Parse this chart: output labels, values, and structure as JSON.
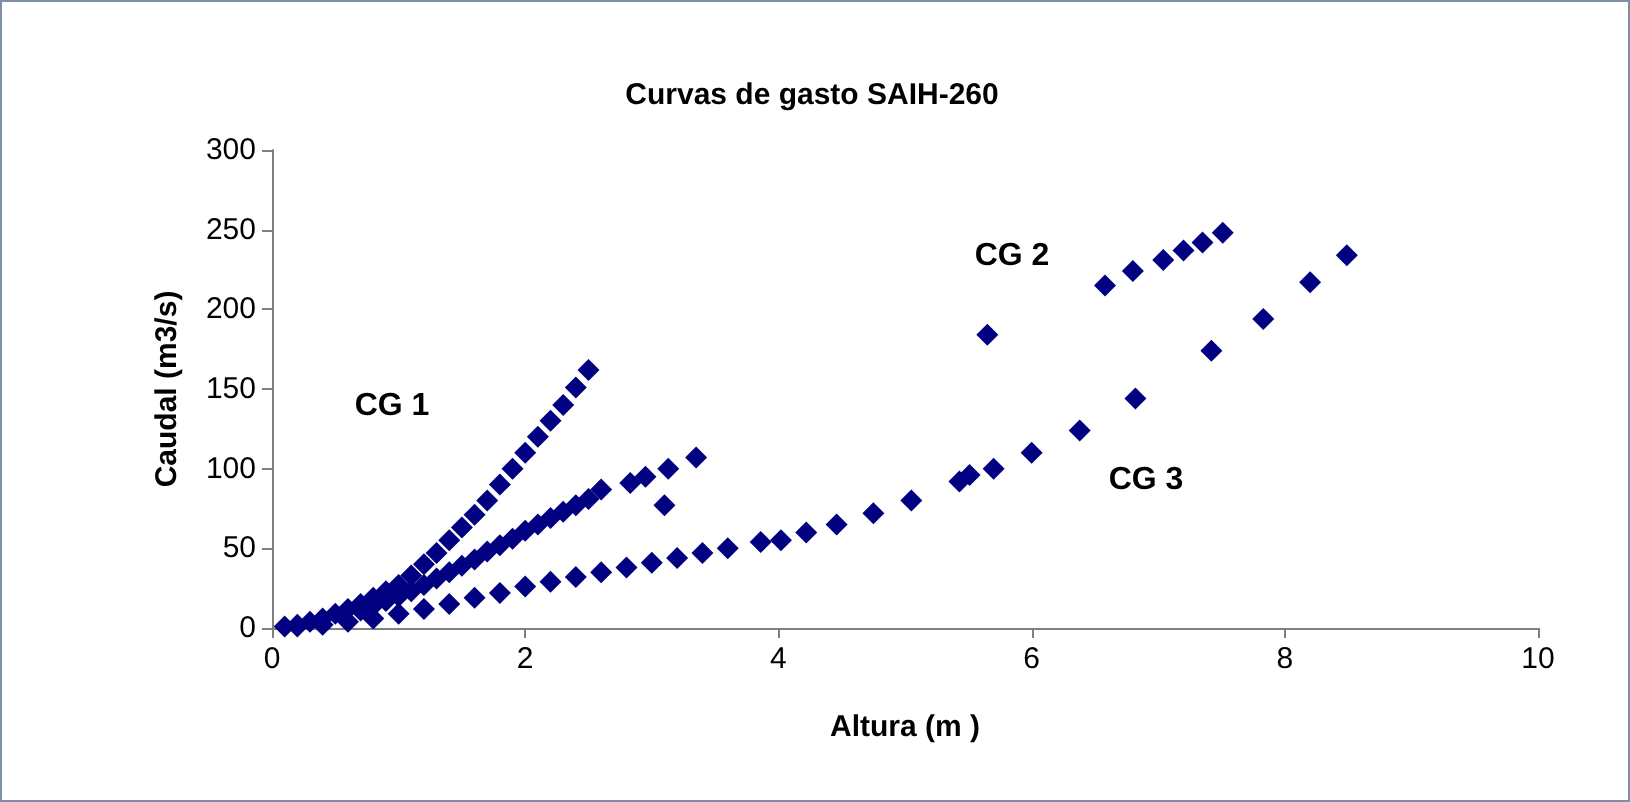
{
  "chart_data": {
    "type": "scatter",
    "title": "Curvas de gasto SAIH-260",
    "xlabel": "Altura (m )",
    "ylabel": "Caudal (m3/s)",
    "xlim": [
      0,
      10
    ],
    "xticks": [
      0,
      2,
      4,
      6,
      8,
      10
    ],
    "ylim": [
      0,
      300
    ],
    "yticks": [
      0,
      50,
      100,
      150,
      200,
      250,
      300
    ],
    "grid": false,
    "marker": "diamond",
    "annotations": [
      "CG 1",
      "CG 2",
      "CG 3"
    ],
    "series": [
      {
        "color": "#000080",
        "x": [
          0.1,
          0.3,
          0.4,
          0.5,
          0.6,
          0.7,
          0.8,
          0.9,
          1.0,
          1.1,
          1.2,
          1.3,
          1.4,
          1.5,
          1.6,
          1.7,
          1.8,
          1.9,
          2.0,
          2.1,
          2.2,
          2.3,
          2.4,
          2.5,
          0.2,
          0.7,
          0.8,
          0.9,
          1.0,
          1.1,
          1.2,
          1.3,
          1.4,
          1.5,
          1.6,
          1.7,
          1.8,
          1.9,
          2.0,
          2.1,
          2.2,
          2.3,
          2.4,
          2.5,
          2.6,
          2.83,
          2.95,
          3.1,
          3.13,
          3.35,
          5.65,
          6.58,
          6.8,
          7.04,
          7.2,
          7.35,
          7.51,
          0.2,
          0.4,
          0.6,
          0.8,
          1.0,
          1.2,
          1.4,
          1.6,
          1.8,
          2.0,
          2.2,
          2.4,
          2.6,
          2.8,
          3.0,
          3.2,
          3.4,
          3.6,
          3.86,
          4.02,
          4.22,
          4.46,
          4.75,
          5.05,
          5.43,
          5.51,
          5.7,
          6.0,
          6.38,
          6.82,
          7.42,
          7.83,
          8.2,
          8.49
        ],
        "values": [
          1,
          4,
          6,
          9,
          12,
          15,
          19,
          23,
          27,
          33,
          40,
          47,
          55,
          63,
          71,
          80,
          90,
          100,
          110,
          120,
          130,
          140,
          151,
          162,
          2,
          11,
          14,
          17,
          20,
          23,
          27,
          31,
          35,
          39,
          43,
          48,
          52,
          56,
          61,
          65,
          69,
          73,
          77,
          81,
          87,
          91,
          95,
          77,
          100,
          107,
          184,
          215,
          224,
          231,
          237,
          242,
          248,
          1,
          2,
          4,
          6,
          9,
          12,
          15,
          19,
          22,
          26,
          29,
          32,
          35,
          38,
          41,
          44,
          47,
          50,
          54,
          55,
          60,
          65,
          72,
          80,
          92,
          96,
          100,
          110,
          124,
          144,
          174,
          194,
          217,
          234
        ]
      }
    ]
  }
}
